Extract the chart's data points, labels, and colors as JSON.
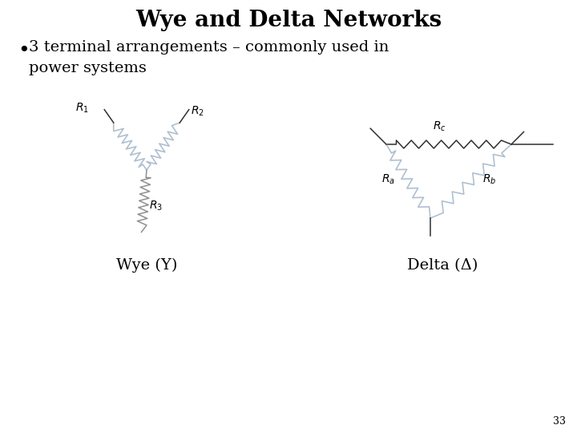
{
  "title": "Wye and Delta Networks",
  "bullet": "3 terminal arrangements – commonly used in\npower systems",
  "wye_label": "Wye (Y)",
  "delta_label": "Delta (Δ)",
  "page_number": "33",
  "background_color": "#ffffff",
  "text_color": "#000000",
  "resistor_color_wye": "#b0c0d0",
  "resistor_color_delta_side": "#b0c0d0",
  "resistor_color_delta_top": "#303030",
  "line_color": "#303030",
  "title_fontsize": 20,
  "bullet_fontsize": 14,
  "sublabel_fontsize": 10,
  "caption_fontsize": 14
}
